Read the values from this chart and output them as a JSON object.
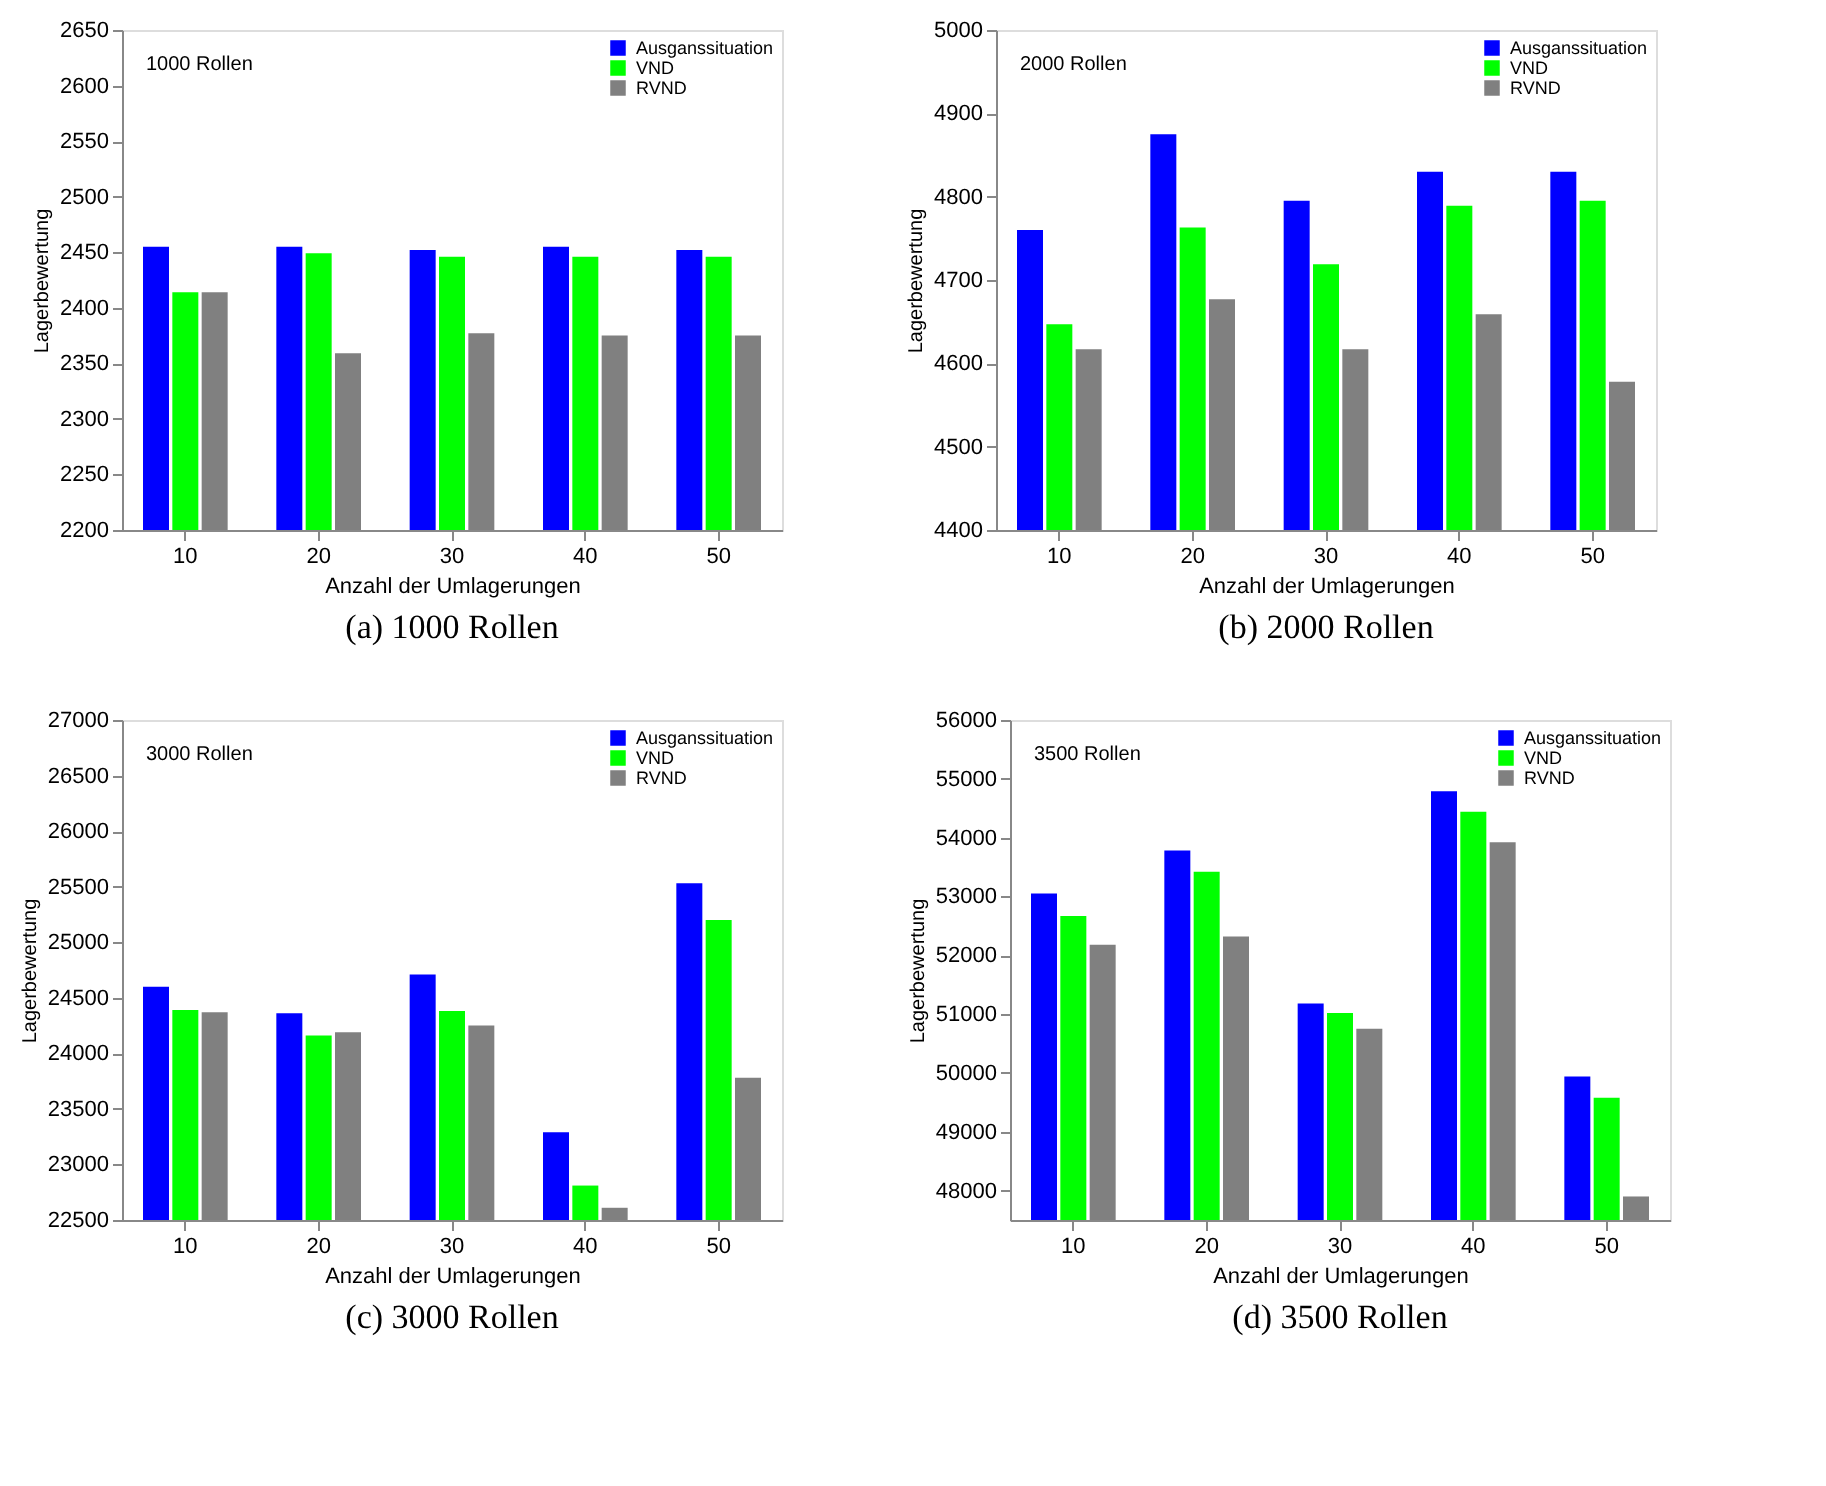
{
  "chart_data": [
    {
      "type": "bar",
      "title": "(a) 1000 Rollen",
      "xlabel": "Anzahl der Umlagerungen",
      "ylabel": "Lagerbewertung",
      "annotations": [
        "1000 Rollen"
      ],
      "categories": [
        "10",
        "20",
        "30",
        "40",
        "50"
      ],
      "ylim": [
        2200,
        2650
      ],
      "yticks": [
        2200,
        2250,
        2300,
        2350,
        2400,
        2450,
        2500,
        2550,
        2600,
        2650
      ],
      "grid": false,
      "legend": "top right",
      "series": [
        {
          "name": "Ausganssituation",
          "color": "#0000ff",
          "values": [
            2455,
            2455,
            2452,
            2455,
            2452
          ]
        },
        {
          "name": "VND",
          "color": "#00ff00",
          "values": [
            2414,
            2449,
            2446,
            2446,
            2446
          ]
        },
        {
          "name": "RVND",
          "color": "#808080",
          "values": [
            2414,
            2359,
            2377,
            2375,
            2375
          ]
        }
      ]
    },
    {
      "type": "bar",
      "title": "(b) 2000 Rollen",
      "xlabel": "Anzahl der Umlagerungen",
      "ylabel": "Lagerbewertung",
      "annotations": [
        "2000 Rollen"
      ],
      "categories": [
        "10",
        "20",
        "30",
        "40",
        "50"
      ],
      "ylim": [
        4400,
        5000
      ],
      "yticks": [
        4400,
        4500,
        4600,
        4700,
        4800,
        4900,
        5000
      ],
      "grid": false,
      "legend": "top right",
      "series": [
        {
          "name": "Ausganssituation",
          "color": "#0000ff",
          "values": [
            4760,
            4875,
            4795,
            4830,
            4830
          ]
        },
        {
          "name": "VND",
          "color": "#00ff00",
          "values": [
            4647,
            4763,
            4719,
            4789,
            4795
          ]
        },
        {
          "name": "RVND",
          "color": "#808080",
          "values": [
            4617,
            4677,
            4617,
            4659,
            4578
          ]
        }
      ]
    },
    {
      "type": "bar",
      "title": "(c) 3000 Rollen",
      "xlabel": "Anzahl der Umlagerungen",
      "ylabel": "Lagerbewertung",
      "annotations": [
        "3000 Rollen"
      ],
      "categories": [
        "10",
        "20",
        "30",
        "40",
        "50"
      ],
      "ylim": [
        22500,
        27000
      ],
      "yticks": [
        22500,
        23000,
        23500,
        24000,
        24500,
        25000,
        25500,
        26000,
        26500,
        27000
      ],
      "grid": false,
      "legend": "top right",
      "series": [
        {
          "name": "Ausganssituation",
          "color": "#0000ff",
          "values": [
            24600,
            24360,
            24710,
            23290,
            25530
          ]
        },
        {
          "name": "VND",
          "color": "#00ff00",
          "values": [
            24390,
            24160,
            24380,
            22810,
            25200
          ]
        },
        {
          "name": "RVND",
          "color": "#808080",
          "values": [
            24370,
            24190,
            24250,
            22610,
            23780
          ]
        }
      ]
    },
    {
      "type": "bar",
      "title": "(d) 3500 Rollen",
      "xlabel": "Anzahl der Umlagerungen",
      "ylabel": "Lagerbewertung",
      "annotations": [
        "3500 Rollen"
      ],
      "categories": [
        "10",
        "20",
        "30",
        "40",
        "50"
      ],
      "ylim": [
        47500,
        56000
      ],
      "yticks": [
        48000,
        49000,
        50000,
        51000,
        52000,
        53000,
        54000,
        55000,
        56000
      ],
      "grid": false,
      "legend": "top right",
      "series": [
        {
          "name": "Ausganssituation",
          "color": "#0000ff",
          "values": [
            53050,
            53780,
            51180,
            54790,
            49940
          ]
        },
        {
          "name": "VND",
          "color": "#00ff00",
          "values": [
            52670,
            53420,
            51020,
            54440,
            49580
          ]
        },
        {
          "name": "RVND",
          "color": "#808080",
          "values": [
            52180,
            52320,
            50750,
            53920,
            47900
          ]
        }
      ]
    }
  ]
}
